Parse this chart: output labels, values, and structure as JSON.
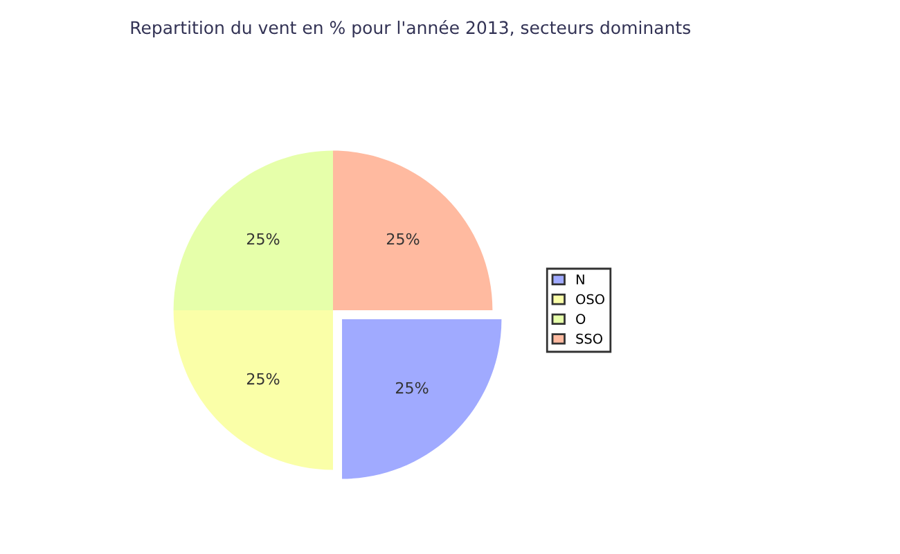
{
  "chart_data": {
    "type": "pie",
    "title": "Repartition du vent en % pour l'année 2013, secteurs dominants",
    "categories": [
      "N",
      "OSO",
      "O",
      "SSO"
    ],
    "values": [
      25,
      25,
      25,
      25
    ],
    "colors": [
      "#a0aaff",
      "#faffa8",
      "#e6ffaa",
      "#ffbaa0"
    ],
    "value_labels": [
      "25%",
      "25%",
      "25%",
      "25%"
    ],
    "legend": "right"
  }
}
